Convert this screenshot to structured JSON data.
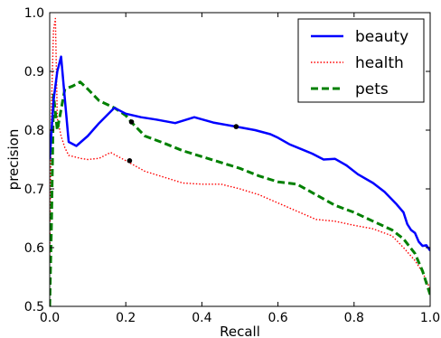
{
  "chart_data": {
    "type": "line",
    "xlabel": "Recall",
    "ylabel": "precision",
    "xlim": [
      0.0,
      1.0
    ],
    "ylim": [
      0.5,
      1.0
    ],
    "xticks": [
      "0.0",
      "0.2",
      "0.4",
      "0.6",
      "0.8",
      "1.0"
    ],
    "yticks": [
      "0.5",
      "0.6",
      "0.7",
      "0.8",
      "0.9",
      "1.0"
    ],
    "grid": false,
    "legend_position": "top-right",
    "series": [
      {
        "name": "beauty",
        "color": "#0000ff",
        "style": "solid",
        "x": [
          0.0,
          0.01,
          0.02,
          0.03,
          0.05,
          0.07,
          0.1,
          0.13,
          0.17,
          0.2,
          0.24,
          0.28,
          0.33,
          0.38,
          0.43,
          0.49,
          0.54,
          0.58,
          0.6,
          0.63,
          0.66,
          0.69,
          0.72,
          0.75,
          0.78,
          0.81,
          0.85,
          0.88,
          0.91,
          0.93,
          0.94,
          0.95,
          0.96,
          0.97,
          0.98,
          0.99,
          1.0
        ],
        "y": [
          0.75,
          0.85,
          0.9,
          0.925,
          0.78,
          0.773,
          0.79,
          0.812,
          0.838,
          0.828,
          0.822,
          0.818,
          0.812,
          0.822,
          0.813,
          0.806,
          0.8,
          0.793,
          0.787,
          0.776,
          0.768,
          0.76,
          0.75,
          0.751,
          0.74,
          0.725,
          0.71,
          0.695,
          0.675,
          0.66,
          0.64,
          0.63,
          0.625,
          0.61,
          0.603,
          0.604,
          0.595
        ],
        "markers": [
          {
            "x": 0.49,
            "y": 0.806
          }
        ]
      },
      {
        "name": "health",
        "color": "#ff0000",
        "style": "dotted",
        "x": [
          0.0,
          0.005,
          0.01,
          0.015,
          0.02,
          0.03,
          0.04,
          0.05,
          0.08,
          0.1,
          0.13,
          0.16,
          0.2,
          0.25,
          0.3,
          0.35,
          0.4,
          0.45,
          0.5,
          0.55,
          0.6,
          0.65,
          0.7,
          0.75,
          0.8,
          0.85,
          0.9,
          0.93,
          0.96,
          0.98,
          1.0
        ],
        "y": [
          0.58,
          0.85,
          0.97,
          0.99,
          0.82,
          0.79,
          0.77,
          0.757,
          0.752,
          0.75,
          0.752,
          0.762,
          0.748,
          0.73,
          0.72,
          0.71,
          0.708,
          0.708,
          0.7,
          0.69,
          0.676,
          0.662,
          0.648,
          0.645,
          0.638,
          0.632,
          0.62,
          0.6,
          0.578,
          0.558,
          0.53
        ],
        "markers": [
          {
            "x": 0.21,
            "y": 0.748
          }
        ]
      },
      {
        "name": "pets",
        "color": "#008000",
        "style": "dashed",
        "x": [
          0.0,
          0.005,
          0.01,
          0.02,
          0.04,
          0.06,
          0.08,
          0.1,
          0.13,
          0.17,
          0.2,
          0.22,
          0.25,
          0.3,
          0.35,
          0.4,
          0.45,
          0.5,
          0.55,
          0.6,
          0.65,
          0.7,
          0.75,
          0.8,
          0.85,
          0.9,
          0.93,
          0.96,
          0.98,
          1.0
        ],
        "y": [
          0.5,
          0.65,
          0.86,
          0.8,
          0.87,
          0.875,
          0.882,
          0.87,
          0.85,
          0.838,
          0.825,
          0.81,
          0.79,
          0.778,
          0.765,
          0.755,
          0.745,
          0.735,
          0.722,
          0.712,
          0.708,
          0.69,
          0.672,
          0.66,
          0.645,
          0.63,
          0.615,
          0.59,
          0.56,
          0.52
        ],
        "markers": [
          {
            "x": 0.215,
            "y": 0.814
          }
        ]
      }
    ]
  }
}
